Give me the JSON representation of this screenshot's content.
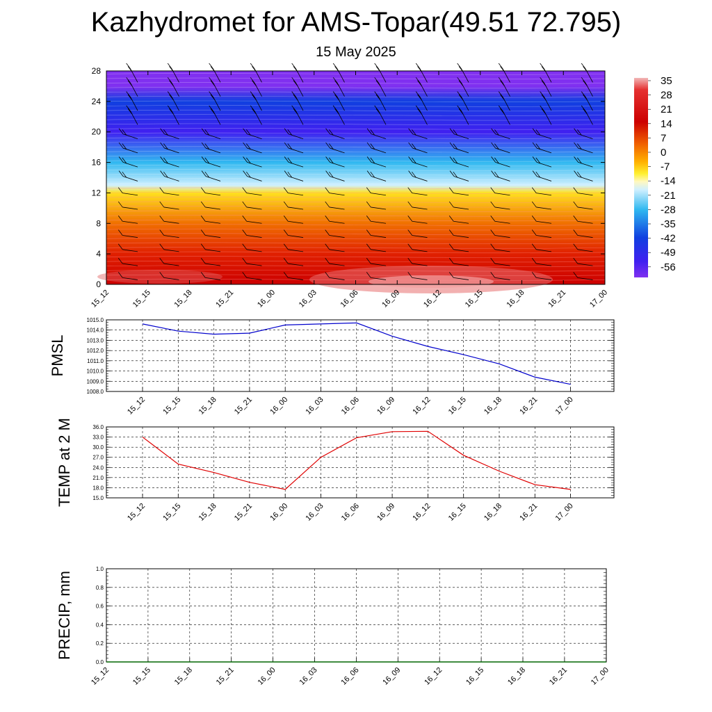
{
  "title": "Kazhydromet for AMS-Topar(49.51 72.795)",
  "subtitle": "15 May 2025",
  "colorbar": {
    "labels": [
      "35",
      "28",
      "21",
      "14",
      "7",
      "0",
      "-7",
      "-14",
      "-21",
      "-28",
      "-35",
      "-42",
      "-49",
      "-56"
    ]
  },
  "chart_data": [
    {
      "type": "heatmap",
      "x": [
        "15_12",
        "15_15",
        "15_18",
        "15_21",
        "16_00",
        "16_03",
        "16_06",
        "16_09",
        "16_12",
        "16_15",
        "16_18",
        "16_21",
        "17_00"
      ],
      "y_ticks": [
        "0",
        "4",
        "8",
        "12",
        "16",
        "20",
        "24",
        "28"
      ],
      "ylim": [
        0,
        28
      ],
      "temperature_profile": [
        {
          "level": 0,
          "value": 25
        },
        {
          "level": 4,
          "value": 20
        },
        {
          "level": 8,
          "value": 10
        },
        {
          "level": 12,
          "value": -2
        },
        {
          "level": 13,
          "value": -14
        },
        {
          "level": 16,
          "value": -28
        },
        {
          "level": 20,
          "value": -49
        },
        {
          "level": 24,
          "value": -42
        },
        {
          "level": 26,
          "value": -56
        },
        {
          "level": 28,
          "value": -56
        }
      ],
      "grid": false
    },
    {
      "type": "line",
      "ylabel": "PMSL",
      "x": [
        "15_12",
        "15_15",
        "15_18",
        "15_21",
        "16_00",
        "16_03",
        "16_06",
        "16_09",
        "16_12",
        "16_15",
        "16_18",
        "16_21",
        "17_00"
      ],
      "y_ticks": [
        "1015.0",
        "1014.0",
        "1013.0",
        "1012.0",
        "1011.0",
        "1010.0",
        "1009.0",
        "1008.0"
      ],
      "ylim": [
        1008,
        1015
      ],
      "values": [
        1014.6,
        1013.9,
        1013.6,
        1013.7,
        1014.5,
        1014.6,
        1014.7,
        1013.4,
        1012.4,
        1011.6,
        1010.7,
        1009.4,
        1008.7
      ],
      "color": "#0000cc",
      "grid": true
    },
    {
      "type": "line",
      "ylabel": "TEMP at 2 M",
      "x": [
        "15_12",
        "15_15",
        "15_18",
        "15_21",
        "16_00",
        "16_03",
        "16_06",
        "16_09",
        "16_12",
        "16_15",
        "16_18",
        "16_21",
        "17_00"
      ],
      "y_ticks": [
        "36.0",
        "33.0",
        "30.0",
        "27.0",
        "24.0",
        "21.0",
        "18.0",
        "15.0"
      ],
      "ylim": [
        15,
        36
      ],
      "values": [
        33.0,
        25.0,
        22.5,
        19.6,
        17.5,
        27.0,
        32.8,
        34.6,
        34.7,
        27.6,
        22.9,
        18.9,
        17.5
      ],
      "color": "#e00000",
      "grid": true
    },
    {
      "type": "line",
      "ylabel": "PRECIP, mm",
      "x": [
        "15_12",
        "15_15",
        "15_18",
        "15_21",
        "16_00",
        "16_03",
        "16_06",
        "16_09",
        "16_12",
        "16_15",
        "16_18",
        "16_21",
        "17_00"
      ],
      "y_ticks": [
        "1.0",
        "0.8",
        "0.6",
        "0.4",
        "0.2",
        "0.0"
      ],
      "ylim": [
        0,
        1
      ],
      "values": [
        0,
        0,
        0,
        0,
        0,
        0,
        0,
        0,
        0,
        0,
        0,
        0,
        0
      ],
      "color": "#006600",
      "grid": true
    }
  ]
}
